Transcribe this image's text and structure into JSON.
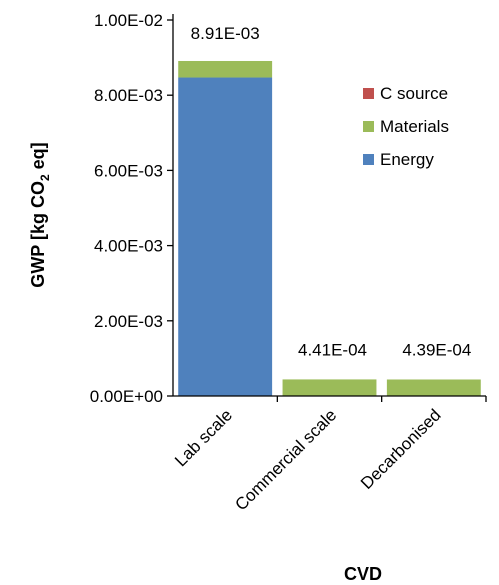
{
  "chart_data": {
    "type": "bar",
    "stacked": true,
    "categories": [
      "Lab scale",
      "Commercial scale",
      "Decarbonised"
    ],
    "series": [
      {
        "name": "Energy",
        "color": "#4f81bd",
        "values": [
          0.00847,
          0.0,
          0.0
        ]
      },
      {
        "name": "Materials",
        "color": "#9bbb59",
        "values": [
          0.00044,
          0.000441,
          0.000439
        ]
      },
      {
        "name": "C source",
        "color": "#c0504d",
        "values": [
          0.0,
          0.0,
          0.0
        ]
      }
    ],
    "totals": [
      "8.91E-03",
      "4.41E-04",
      "4.39E-04"
    ],
    "xlabel": "CVD",
    "ylabel_parts": {
      "pre": "GWP [kg CO",
      "sub": "2",
      "post": " eq]"
    },
    "ylim": [
      0,
      0.01
    ],
    "yticks": [
      0,
      0.002,
      0.004,
      0.006,
      0.008,
      0.01
    ],
    "ytick_labels": [
      "0.00E+00",
      "2.00E-03",
      "4.00E-03",
      "6.00E-03",
      "8.00E-03",
      "1.00E-02"
    ],
    "legend_order": [
      "C source",
      "Materials",
      "Energy"
    ],
    "legend_position": "top-right",
    "grid": false
  }
}
